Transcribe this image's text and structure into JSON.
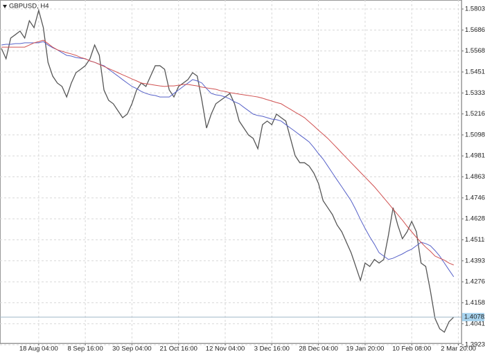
{
  "chart_data": {
    "type": "line",
    "title": "GBPUSD, H4",
    "categories": [
      null,
      null,
      null,
      null,
      null,
      null,
      null,
      null,
      "18 Aug 04:00",
      null,
      null,
      null,
      null,
      null,
      null,
      null,
      null,
      null,
      "8 Sep 16:00",
      null,
      null,
      null,
      null,
      null,
      null,
      null,
      null,
      null,
      "30 Sep 04:00",
      null,
      null,
      null,
      null,
      null,
      null,
      null,
      null,
      null,
      "21 Oct 16:00",
      null,
      null,
      null,
      null,
      null,
      null,
      null,
      null,
      null,
      "12 Nov 04:00",
      null,
      null,
      null,
      null,
      null,
      null,
      null,
      null,
      null,
      "3 Dec 16:00",
      null,
      null,
      null,
      null,
      null,
      null,
      null,
      null,
      null,
      "28 Dec 04:00",
      null,
      null,
      null,
      null,
      null,
      null,
      null,
      null,
      null,
      "19 Jan 20:00",
      null,
      null,
      null,
      null,
      null,
      null,
      null,
      null,
      null,
      "10 Feb 08:00",
      null,
      null,
      null,
      null,
      null,
      null,
      null,
      null,
      null,
      "2 Mar 20:00"
    ],
    "series": [
      {
        "color": "#555555",
        "values": [
          1.5583,
          1.5525,
          1.5641,
          1.566,
          1.568,
          1.5641,
          1.5738,
          1.5699,
          1.5796,
          1.5699,
          1.5505,
          1.5428,
          1.5389,
          1.537,
          1.5311,
          1.5389,
          1.5447,
          1.5466,
          1.5486,
          1.5525,
          1.5602,
          1.5544,
          1.535,
          1.5292,
          1.5273,
          1.5234,
          1.5195,
          1.5215,
          1.5273,
          1.535,
          1.5389,
          1.537,
          1.5428,
          1.5486,
          1.5486,
          1.5466,
          1.535,
          1.5311,
          1.537,
          1.5389,
          1.5408,
          1.5447,
          1.5428,
          1.5292,
          1.5137,
          1.5215,
          1.5273,
          1.5292,
          1.5311,
          1.5331,
          1.5273,
          1.5176,
          1.5137,
          1.5098,
          1.5079,
          1.5021,
          1.5156,
          1.5176,
          1.5156,
          1.5215,
          1.5195,
          1.5176,
          1.5079,
          1.4982,
          1.4943,
          1.4943,
          1.4924,
          1.4885,
          1.4827,
          1.473,
          1.4691,
          1.4652,
          1.4594,
          1.4556,
          1.4497,
          1.4439,
          1.4362,
          1.4284,
          1.4381,
          1.4362,
          1.4401,
          1.4381,
          1.4401,
          1.4536,
          1.4691,
          1.4594,
          1.4517,
          1.4556,
          1.4614,
          1.4556,
          1.4381,
          1.4362,
          1.4226,
          1.4071,
          1.4013,
          1.3994,
          1.4052,
          1.4078,
          null
        ]
      },
      {
        "color": "#5560c8",
        "values": [
          1.5602,
          1.5606,
          1.5606,
          1.561,
          1.561,
          1.5614,
          1.5614,
          1.5614,
          1.5614,
          1.5621,
          1.5602,
          1.5587,
          1.5575,
          1.5559,
          1.5544,
          1.554,
          1.5532,
          1.5528,
          1.5525,
          1.5513,
          1.5505,
          1.5494,
          1.5486,
          1.5466,
          1.5447,
          1.5428,
          1.5408,
          1.5389,
          1.537,
          1.5358,
          1.5342,
          1.5331,
          1.5323,
          1.5319,
          1.5311,
          1.5311,
          1.5311,
          1.5331,
          1.535,
          1.537,
          1.5389,
          1.5408,
          1.5401,
          1.5389,
          1.5358,
          1.5331,
          1.5323,
          1.5319,
          1.5311,
          1.53,
          1.5284,
          1.5273,
          1.5253,
          1.5234,
          1.5215,
          1.5207,
          1.5203,
          1.5195,
          1.5187,
          1.5184,
          1.5176,
          1.5156,
          1.5137,
          1.5118,
          1.5098,
          1.5079,
          1.5059,
          1.5028,
          1.4994,
          1.4963,
          1.4924,
          1.4885,
          1.4846,
          1.4808,
          1.4769,
          1.473,
          1.468,
          1.4625,
          1.4575,
          1.4528,
          1.4486,
          1.4439,
          1.442,
          1.4401,
          1.4408,
          1.442,
          1.4432,
          1.4447,
          1.4459,
          1.4478,
          1.4497,
          1.449,
          1.4478,
          1.4451,
          1.442,
          1.4381,
          1.4342,
          1.4304,
          null
        ]
      },
      {
        "color": "#d05050",
        "values": [
          1.559,
          1.559,
          1.559,
          1.559,
          1.559,
          1.559,
          1.5602,
          1.5614,
          1.5621,
          1.5629,
          1.561,
          1.559,
          1.5575,
          1.5567,
          1.5559,
          1.5552,
          1.5544,
          1.5532,
          1.5525,
          1.5513,
          1.5505,
          1.5494,
          1.5482,
          1.547,
          1.5459,
          1.5447,
          1.5435,
          1.5424,
          1.5412,
          1.5401,
          1.5389,
          1.5385,
          1.5381,
          1.5377,
          1.5373,
          1.537,
          1.5373,
          1.5373,
          1.5377,
          1.5381,
          1.5381,
          1.5377,
          1.5373,
          1.5366,
          1.5362,
          1.5358,
          1.5354,
          1.5346,
          1.5342,
          1.5335,
          1.5331,
          1.5327,
          1.5323,
          1.5319,
          1.5315,
          1.5311,
          1.5304,
          1.5296,
          1.5288,
          1.528,
          1.5273,
          1.5257,
          1.5242,
          1.5226,
          1.5211,
          1.5195,
          1.5172,
          1.5149,
          1.5125,
          1.5102,
          1.5079,
          1.5052,
          1.5025,
          1.4997,
          1.497,
          1.4943,
          1.4916,
          1.4889,
          1.4862,
          1.4835,
          1.4808,
          1.4777,
          1.4746,
          1.4715,
          1.4683,
          1.4652,
          1.4621,
          1.4587,
          1.4556,
          1.4525,
          1.4497,
          1.447,
          1.4447,
          1.442,
          1.4408,
          1.4397,
          1.4381,
          1.437,
          null
        ]
      }
    ],
    "ylim": [
      1.3885,
      1.5854
    ],
    "yticks": [
      1.58035,
      {
        "value": 1.5686,
        "label": "1.56860"
      },
      1.55685,
      {
        "value": 1.5451,
        "label": "1.54510"
      },
      1.53335,
      {
        "value": 1.5216,
        "label": "1.52160"
      },
      1.50985,
      {
        "value": 1.4981,
        "label": "1.49810"
      },
      1.48635,
      {
        "value": 1.4746,
        "label": "1.47460"
      },
      1.46285,
      {
        "value": 1.4511,
        "label": "1.45110"
      },
      1.43935,
      {
        "value": 1.4276,
        "label": "1.42760"
      },
      1.41585,
      {
        "value": 1.4041,
        "label": "1.40410"
      },
      1.39235
    ],
    "last_price": 1.40782,
    "grid": true
  }
}
